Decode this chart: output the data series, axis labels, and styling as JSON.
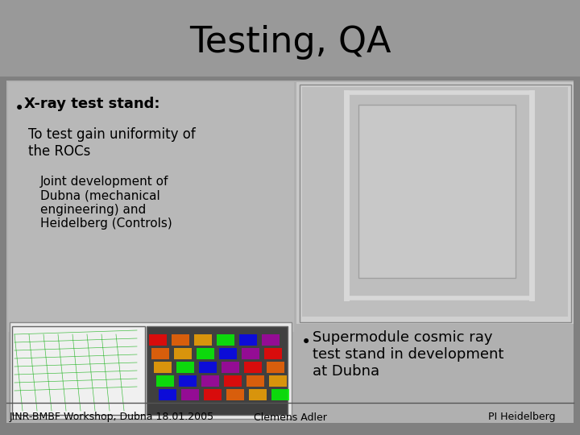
{
  "title": "Testing, QA",
  "title_fontsize": 32,
  "title_color": "#000000",
  "title_bg_color": "#999999",
  "slide_bg_color": "#808080",
  "content_bg_color": "#A0A0A0",
  "bullet1": "X-ray test stand:",
  "bullet1_sub1": "To test gain uniformity of\nthe ROCs",
  "bullet1_sub2": "Joint development of\nDubna (mechanical\nengineering) and\nHeidelberg (Controls)",
  "bullet2": "Supermodule cosmic ray\ntest stand in development\nat Dubna",
  "footer_left": "JINR-BMBF Workshop, Dubna 18.01.2005",
  "footer_mid": "Clemens Adler",
  "footer_right": "PI Heidelberg",
  "footer_fontsize": 9,
  "bullet_fontsize": 13,
  "sub1_fontsize": 12,
  "sub2_fontsize": 11
}
